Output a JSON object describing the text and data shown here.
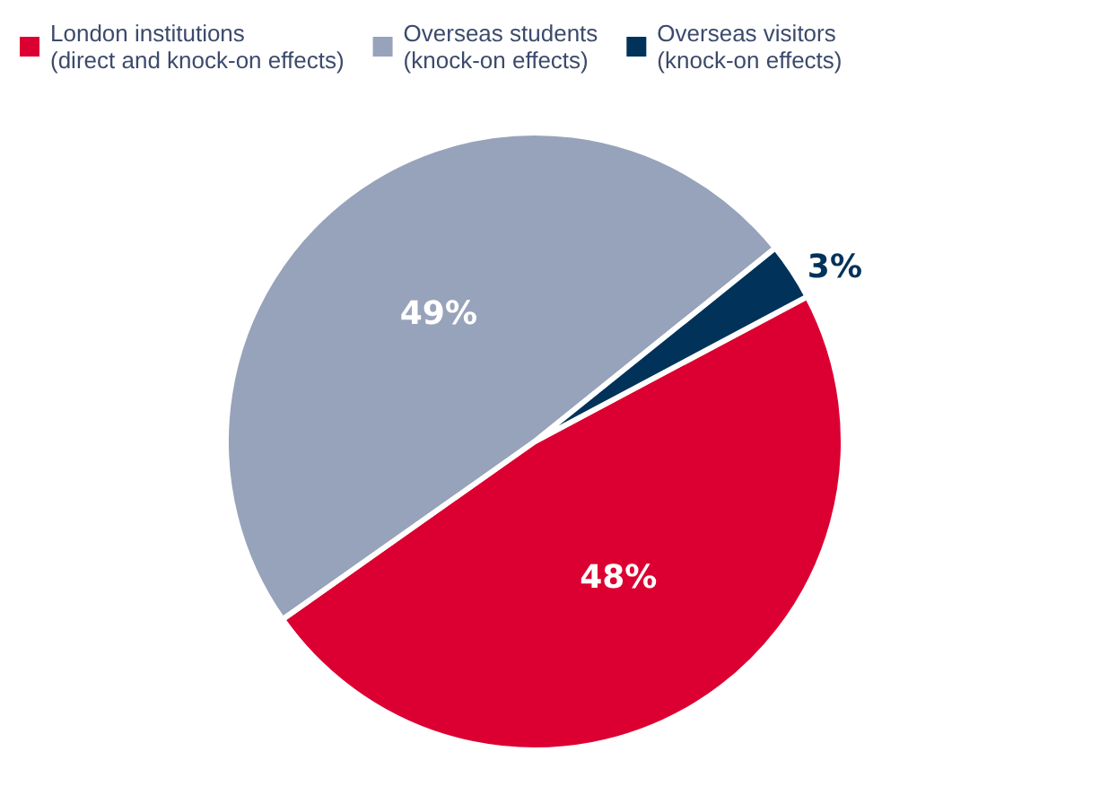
{
  "chart_data": {
    "type": "pie",
    "categories": [
      "London institutions\n(direct and knock-on effects)",
      "Overseas students\n(knock-on effects)",
      "Overseas visitors\n(knock-on effects)"
    ],
    "values": [
      48,
      49,
      3
    ],
    "colors": [
      "#dc0032",
      "#97a3ba",
      "#00325a"
    ],
    "value_labels": [
      "48%",
      "49%",
      "3%"
    ],
    "legend": "top left"
  }
}
